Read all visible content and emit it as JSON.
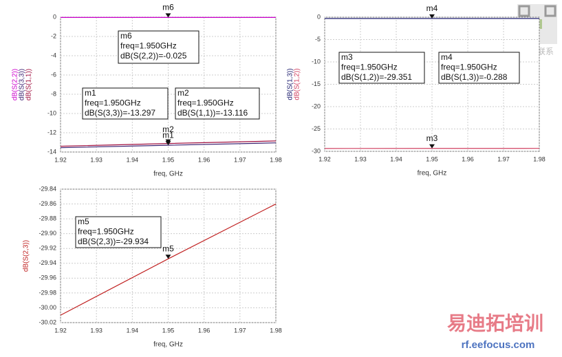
{
  "chart_data": [
    {
      "type": "line",
      "xlabel": "freq, GHz",
      "x": [
        1.92,
        1.95,
        1.98
      ],
      "series": [
        {
          "name": "dB(S(2,2))",
          "color": "#cc00cc",
          "values": [
            -0.025,
            -0.025,
            -0.025
          ]
        },
        {
          "name": "dB(S(3,3))",
          "color": "#3a2070",
          "values": [
            -13.55,
            -13.297,
            -13.05
          ]
        },
        {
          "name": "dB(S(1,1))",
          "color": "#a01040",
          "values": [
            -13.4,
            -13.116,
            -12.85
          ]
        }
      ],
      "xlim": [
        1.92,
        1.98
      ],
      "xticks": [
        1.92,
        1.93,
        1.94,
        1.95,
        1.96,
        1.97,
        1.98
      ],
      "ylim": [
        -14,
        0
      ],
      "yticks": [
        0,
        -2,
        -4,
        -6,
        -8,
        -10,
        -12,
        -14
      ],
      "grid": true,
      "markers": [
        {
          "label": "m6",
          "x": 1.95,
          "y": -0.025,
          "lines": [
            "m6",
            "freq=1.950GHz",
            "dB(S(2,2))=-0.025"
          ]
        },
        {
          "label": "m1",
          "x": 1.95,
          "y": -13.297,
          "lines": [
            "m1",
            "freq=1.950GHz",
            "dB(S(3,3))=-13.297"
          ]
        },
        {
          "label": "m2",
          "x": 1.95,
          "y": -13.116,
          "lines": [
            "m2",
            "freq=1.950GHz",
            "dB(S(1,1))=-13.116"
          ]
        }
      ]
    },
    {
      "type": "line",
      "xlabel": "freq, GHz",
      "x": [
        1.92,
        1.95,
        1.98
      ],
      "series": [
        {
          "name": "dB(S(1,3))",
          "color": "#202070",
          "values": [
            -0.288,
            -0.288,
            -0.288
          ]
        },
        {
          "name": "dB(S(1,2))",
          "color": "#d04060",
          "values": [
            -29.36,
            -29.351,
            -29.34
          ]
        }
      ],
      "xlim": [
        1.92,
        1.98
      ],
      "xticks": [
        1.92,
        1.93,
        1.94,
        1.95,
        1.96,
        1.97,
        1.98
      ],
      "ylim": [
        -30,
        0
      ],
      "yticks": [
        0,
        -5,
        -10,
        -15,
        -20,
        -25,
        -30
      ],
      "grid": true,
      "markers": [
        {
          "label": "m3",
          "x": 1.95,
          "y": -29.351,
          "lines": [
            "m3",
            "freq=1.950GHz",
            "dB(S(1,2))=-29.351"
          ]
        },
        {
          "label": "m4",
          "x": 1.95,
          "y": -0.288,
          "lines": [
            "m4",
            "freq=1.950GHz",
            "dB(S(1,3))=-0.288"
          ]
        }
      ]
    },
    {
      "type": "line",
      "xlabel": "freq, GHz",
      "x": [
        1.92,
        1.95,
        1.98
      ],
      "series": [
        {
          "name": "dB(S(2,3))",
          "color": "#c02020",
          "values": [
            -30.01,
            -29.934,
            -29.86
          ]
        }
      ],
      "xlim": [
        1.92,
        1.98
      ],
      "xticks": [
        1.92,
        1.93,
        1.94,
        1.95,
        1.96,
        1.97,
        1.98
      ],
      "ylim": [
        -30.02,
        -29.84
      ],
      "yticks": [
        -29.84,
        -29.86,
        -29.88,
        {
          "value": -29.9,
          "label": "-29.90"
        },
        -29.92,
        -29.94,
        -29.96,
        -29.98,
        {
          "value": -30,
          "label": "-30.00"
        },
        -30.02
      ],
      "grid": true,
      "markers": [
        {
          "label": "m5",
          "x": 1.95,
          "y": -29.934,
          "lines": [
            "m5",
            "freq=1.950GHz",
            "dB(S(2,3))=-29.934"
          ]
        }
      ]
    }
  ],
  "watermark": {
    "qr_caption": "微信联系",
    "brand": "易迪拓培训",
    "url": "rf.eefocus.com"
  }
}
